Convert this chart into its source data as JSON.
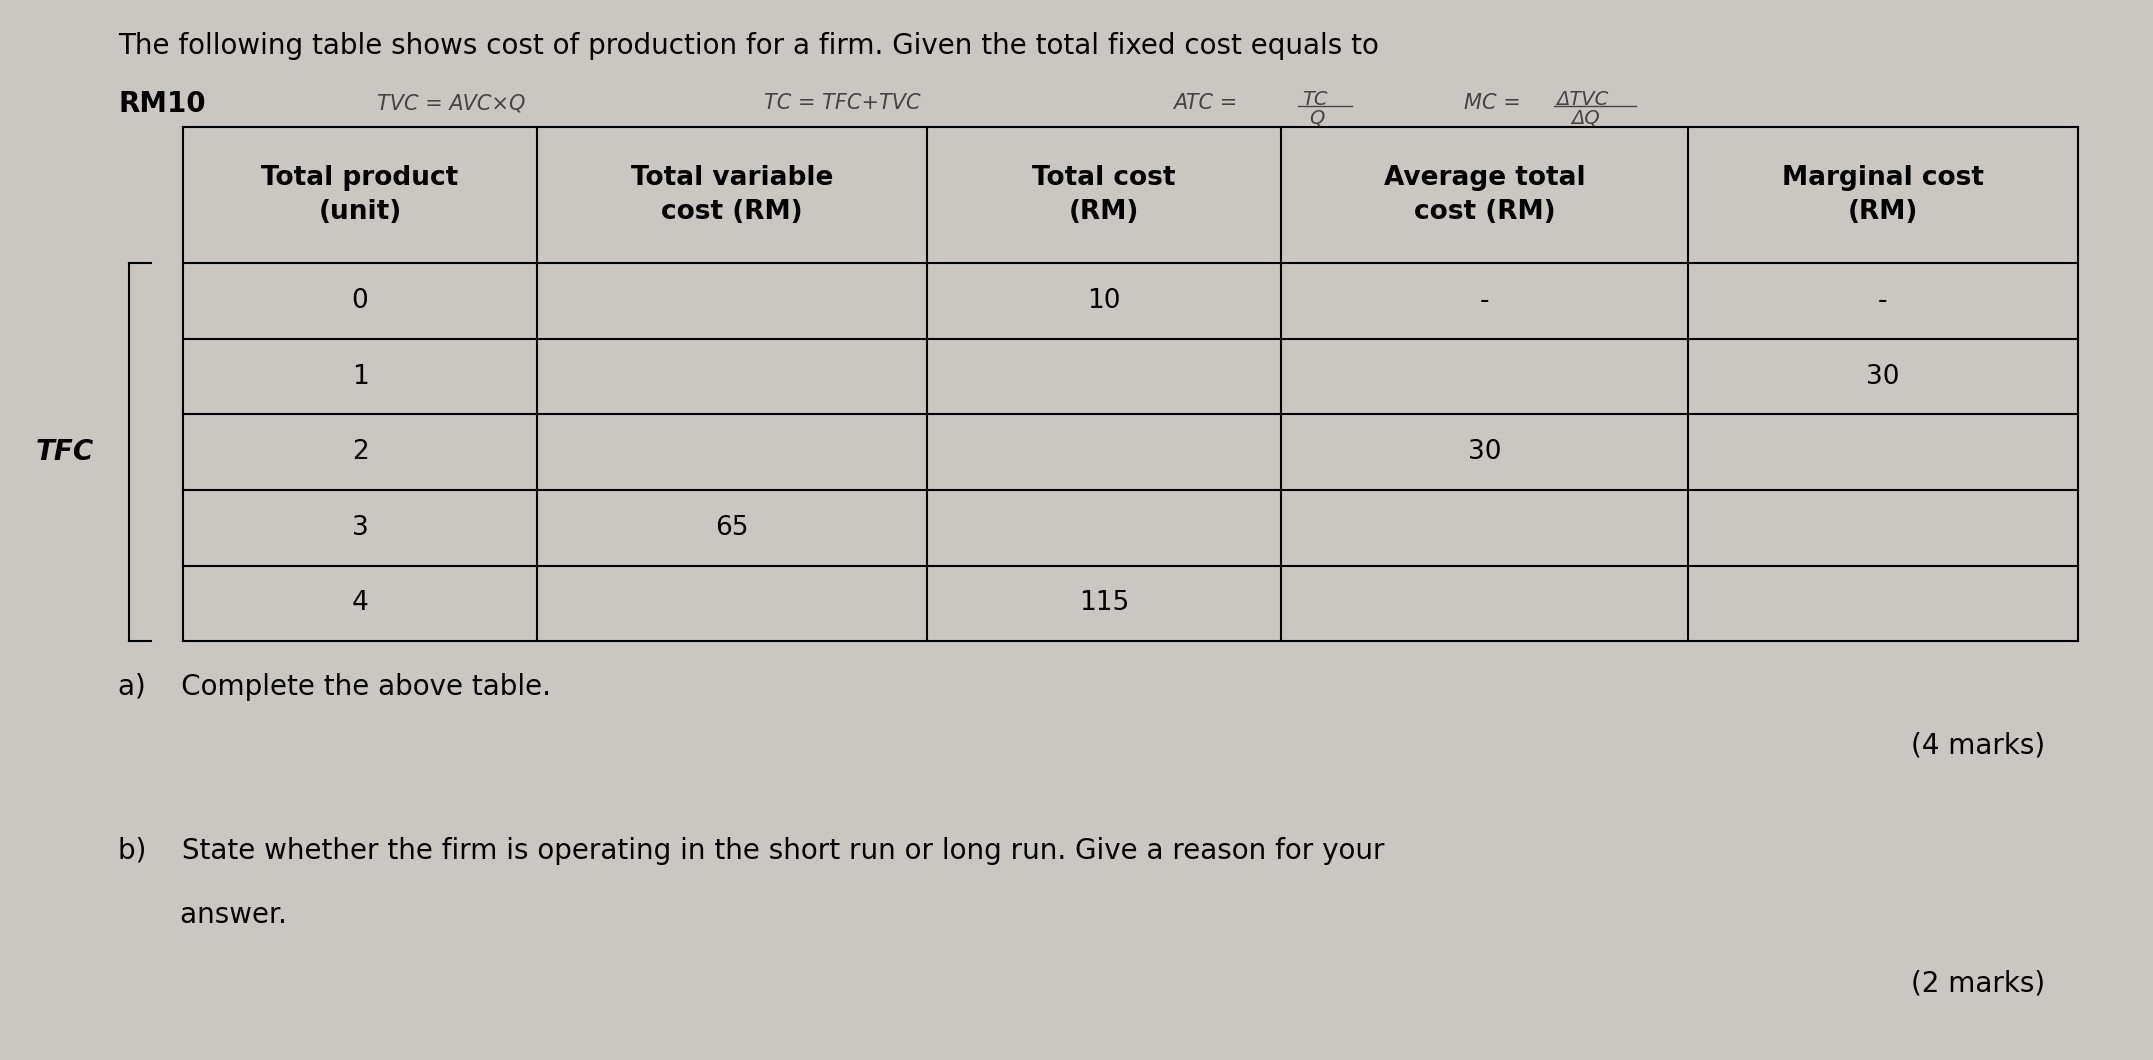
{
  "background_color": "#cac7c2",
  "title_line1": "The following table shows cost of production for a firm. Given the total fixed cost equals to",
  "title_line2": "RM10",
  "left_label": "TFC",
  "col_headers": [
    "Total product\n(unit)",
    "Total variable\ncost (RM)",
    "Total cost\n(RM)",
    "Average total\ncost (RM)",
    "Marginal cost\n(RM)"
  ],
  "rows": [
    [
      "0",
      "",
      "10",
      "-",
      "-"
    ],
    [
      "1",
      "",
      "",
      "",
      "30"
    ],
    [
      "2",
      "",
      "",
      "30",
      ""
    ],
    [
      "3",
      "65",
      "",
      "",
      ""
    ],
    [
      "4",
      "",
      "115",
      "",
      ""
    ]
  ],
  "question_a": "a)    Complete the above table.",
  "marks_a": "(4 marks)",
  "question_b_line1": "b)    State whether the firm is operating in the short run or long run. Give a reason for your",
  "question_b_line2": "       answer.",
  "marks_b": "(2 marks)",
  "title_fontsize": 20,
  "header_fontsize": 19,
  "cell_fontsize": 19,
  "question_fontsize": 20,
  "formula_fontsize": 15
}
